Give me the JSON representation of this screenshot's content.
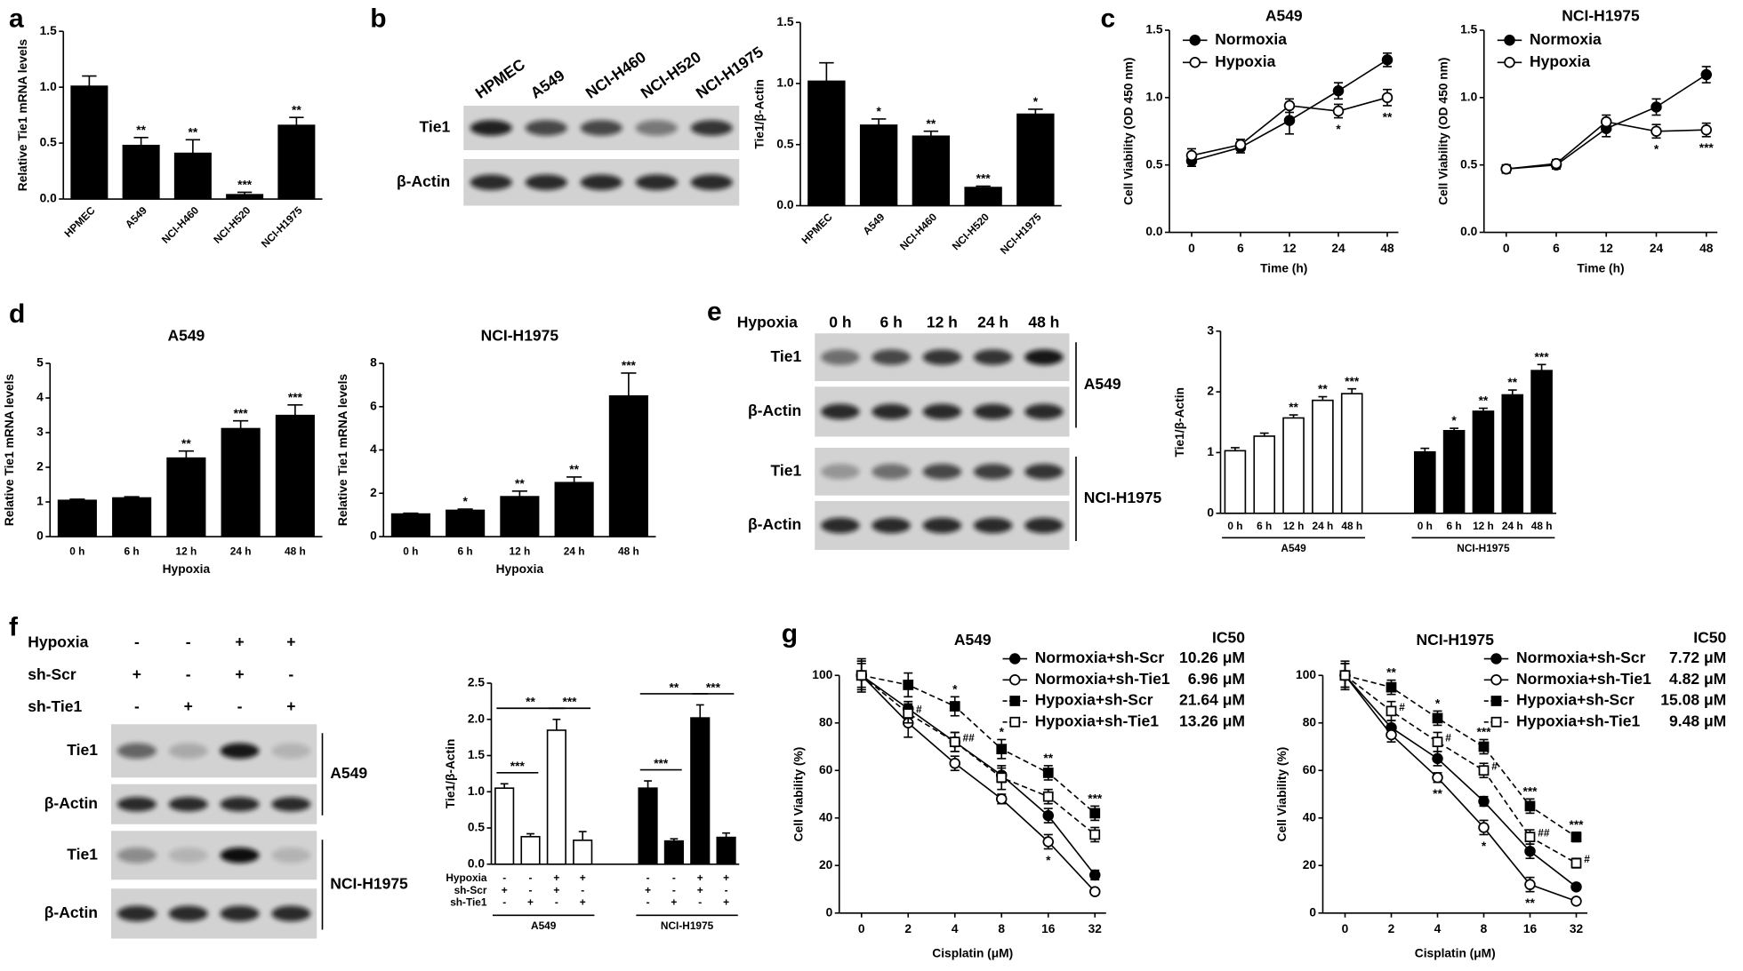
{
  "panel_labels": [
    "a",
    "b",
    "c",
    "d",
    "e",
    "f",
    "g"
  ],
  "blots": [
    {
      "lanes": [
        "HPMEC",
        "A549",
        "NCI-H460",
        "NCI-H520",
        "NCI-H1975"
      ],
      "sections": [
        {
          "rows": [
            "Tie1",
            "β-Actin"
          ]
        }
      ]
    },
    {
      "title": "Hypoxia",
      "lanes": [
        "0 h",
        "6 h",
        "12 h",
        "24 h",
        "48 h"
      ],
      "sections": [
        {
          "name": "A549",
          "rows": [
            "Tie1",
            "β-Actin"
          ]
        },
        {
          "name": "NCI-H1975",
          "rows": [
            "Tie1",
            "β-Actin"
          ]
        }
      ]
    },
    {
      "conditions": [
        {
          "name": "Hypoxia",
          "values": [
            "-",
            "-",
            "+",
            "+"
          ]
        },
        {
          "name": "sh-Scr",
          "values": [
            "+",
            "-",
            "+",
            "-"
          ]
        },
        {
          "name": "sh-Tie1",
          "values": [
            "-",
            "+",
            "-",
            "+"
          ]
        }
      ],
      "sections": [
        {
          "name": "A549",
          "rows": [
            "Tie1",
            "β-Actin"
          ]
        },
        {
          "name": "NCI-H1975",
          "rows": [
            "Tie1",
            "β-Actin"
          ]
        }
      ]
    }
  ],
  "chart_data": [
    {
      "type": "bar",
      "y_label": "Relative Tie1 mRNA levels",
      "categories": [
        "HPMEC",
        "A549",
        "NCI-H460",
        "NCI-H520",
        "NCI-H1975"
      ],
      "values": [
        1.01,
        0.48,
        0.41,
        0.04,
        0.66
      ],
      "errors": [
        0.09,
        0.07,
        0.12,
        0.02,
        0.07
      ],
      "annotations": [
        null,
        "**",
        "**",
        "***",
        "**"
      ],
      "color": "#000000",
      "ylim": [
        0,
        1.5
      ],
      "yticks": [
        {
          "value": 0,
          "label": "0.0"
        },
        0.5,
        {
          "value": 1,
          "label": "1.0"
        },
        1.5
      ]
    },
    {
      "type": "bar",
      "y_label": "Tie1/β-Actin",
      "categories": [
        "HPMEC",
        "A549",
        "NCI-H460",
        "NCI-H520",
        "NCI-H1975"
      ],
      "values": [
        1.02,
        0.66,
        0.57,
        0.15,
        0.75
      ],
      "errors": [
        0.15,
        0.05,
        0.04,
        0.01,
        0.04
      ],
      "annotations": [
        null,
        "*",
        "**",
        "***",
        "*"
      ],
      "color": "#000000",
      "ylim": [
        0,
        1.5
      ],
      "yticks": [
        {
          "value": 0,
          "label": "0.0"
        },
        0.5,
        {
          "value": 1,
          "label": "1.0"
        },
        1.5
      ]
    },
    {
      "type": "line",
      "title": "A549",
      "x_label": "Time (h)",
      "y_label": "Cell Viability (OD 450 nm)",
      "categories": [
        "0",
        "6",
        "12",
        "24",
        "48"
      ],
      "legend": "upper left",
      "ylim": [
        0,
        1.5
      ],
      "yticks": [
        {
          "value": 0,
          "label": "0.0"
        },
        0.5,
        {
          "value": 1,
          "label": "1.0"
        },
        1.5
      ],
      "series": [
        {
          "name": "Normoxia",
          "color": "#000000",
          "marker": "circle",
          "filled": true,
          "dashed": false,
          "values": [
            0.53,
            0.63,
            0.83,
            1.05,
            1.28
          ],
          "errors": [
            0.04,
            0.04,
            0.1,
            0.06,
            0.05
          ]
        },
        {
          "name": "Hypoxia",
          "color": "#000000",
          "marker": "circle",
          "filled": false,
          "dashed": false,
          "values": [
            0.57,
            0.65,
            0.94,
            0.9,
            1.0
          ],
          "errors": [
            0.05,
            0.04,
            0.05,
            0.05,
            0.06
          ],
          "annotations": [
            null,
            null,
            null,
            "*",
            "**"
          ]
        }
      ]
    },
    {
      "type": "line",
      "title": "NCI-H1975",
      "x_label": "Time (h)",
      "y_label": "Cell Viability (OD 450 nm)",
      "categories": [
        "0",
        "6",
        "12",
        "24",
        "48"
      ],
      "legend": "upper left",
      "ylim": [
        0,
        1.5
      ],
      "yticks": [
        {
          "value": 0,
          "label": "0.0"
        },
        0.5,
        {
          "value": 1,
          "label": "1.0"
        },
        1.5
      ],
      "series": [
        {
          "name": "Normoxia",
          "color": "#000000",
          "marker": "circle",
          "filled": true,
          "dashed": false,
          "values": [
            0.47,
            0.5,
            0.77,
            0.93,
            1.17
          ],
          "errors": [
            0.03,
            0.03,
            0.06,
            0.06,
            0.06
          ]
        },
        {
          "name": "Hypoxia",
          "color": "#000000",
          "marker": "circle",
          "filled": false,
          "dashed": false,
          "values": [
            0.47,
            0.51,
            0.82,
            0.75,
            0.76
          ],
          "errors": [
            0.03,
            0.03,
            0.05,
            0.05,
            0.05
          ],
          "annotations": [
            null,
            null,
            null,
            "*",
            "***"
          ]
        }
      ]
    },
    {
      "type": "bar",
      "title": "A549",
      "x_label": "Hypoxia",
      "y_label": "Relative Tie1 mRNA levels",
      "categories": [
        "0 h",
        "6 h",
        "12 h",
        "24 h",
        "48 h"
      ],
      "values": [
        1.05,
        1.12,
        2.27,
        3.12,
        3.5
      ],
      "errors": [
        0.03,
        0.03,
        0.2,
        0.22,
        0.3
      ],
      "annotations": [
        null,
        null,
        "**",
        "***",
        "***"
      ],
      "color": "#000000",
      "ylim": [
        0,
        5
      ],
      "yticks": [
        0,
        1,
        2,
        3,
        4,
        5
      ]
    },
    {
      "type": "bar",
      "title": "NCI-H1975",
      "x_label": "Hypoxia",
      "y_label": "Relative Tie1 mRNA levels",
      "categories": [
        "0 h",
        "6 h",
        "12 h",
        "24 h",
        "48 h"
      ],
      "values": [
        1.05,
        1.22,
        1.85,
        2.5,
        6.5
      ],
      "errors": [
        0.03,
        0.05,
        0.25,
        0.25,
        1.05
      ],
      "annotations": [
        null,
        "*",
        "**",
        "**",
        "***"
      ],
      "color": "#000000",
      "ylim": [
        0,
        8
      ],
      "yticks": [
        0,
        2,
        4,
        6,
        8
      ]
    },
    {
      "type": "grouped_bar",
      "y_label": "Tie1/β-Actin",
      "categories": [
        "0 h",
        "6 h",
        "12 h",
        "24 h",
        "48 h"
      ],
      "ylim": [
        0,
        3
      ],
      "yticks": [
        0,
        1,
        2,
        3
      ],
      "groups": [
        {
          "name": "A549",
          "color": "#ffffff",
          "values": [
            1.03,
            1.27,
            1.57,
            1.86,
            1.97
          ],
          "errors": [
            0.05,
            0.05,
            0.05,
            0.06,
            0.08
          ],
          "annotations": [
            null,
            null,
            "**",
            "**",
            "***"
          ]
        },
        {
          "name": "NCI-H1975",
          "color": "#000000",
          "values": [
            1.01,
            1.36,
            1.68,
            1.95,
            2.35
          ],
          "errors": [
            0.06,
            0.04,
            0.05,
            0.08,
            0.1
          ],
          "annotations": [
            null,
            "*",
            "**",
            "**",
            "***"
          ]
        }
      ]
    },
    {
      "type": "grouped_bar",
      "y_label": "Tie1/β-Actin",
      "ylim": [
        0,
        2.5
      ],
      "yticks": [
        {
          "value": 0,
          "label": "0.0"
        },
        0.5,
        {
          "value": 1,
          "label": "1.0"
        },
        1.5,
        {
          "value": 2,
          "label": "2.0"
        },
        2.5
      ],
      "conditions": [
        {
          "name": "Hypoxia",
          "values": [
            "-",
            "-",
            "+",
            "+"
          ]
        },
        {
          "name": "sh-Scr",
          "values": [
            "+",
            "-",
            "+",
            "-"
          ]
        },
        {
          "name": "sh-Tie1",
          "values": [
            "-",
            "+",
            "-",
            "+"
          ]
        }
      ],
      "groups": [
        {
          "name": "A549",
          "color": "#ffffff",
          "values": [
            1.05,
            0.38,
            1.85,
            0.33
          ],
          "errors": [
            0.06,
            0.04,
            0.15,
            0.12
          ],
          "comparisons": [
            "***",
            "**",
            "***"
          ]
        },
        {
          "name": "NCI-H1975",
          "color": "#000000",
          "values": [
            1.05,
            0.32,
            2.02,
            0.37
          ],
          "errors": [
            0.1,
            0.03,
            0.18,
            0.06
          ],
          "comparisons": [
            "***",
            "**",
            "***"
          ]
        }
      ]
    },
    {
      "type": "line",
      "title": "A549",
      "x_label": "Cisplatin (μM)",
      "y_label": "Cell Viability (%)",
      "categories": [
        "0",
        "2",
        "4",
        "8",
        "16",
        "32"
      ],
      "legend": "upper right",
      "legend_header": "IC50",
      "ylim": [
        0,
        100
      ],
      "yticks": [
        0,
        20,
        40,
        60,
        80,
        100
      ],
      "series": [
        {
          "name": "Normoxia+sh-Scr",
          "ic50": "10.26 μM",
          "color": "#000000",
          "marker": "circle",
          "filled": true,
          "dashed": false,
          "values": [
            100,
            86,
            72,
            58,
            41,
            16
          ],
          "errors": [
            6,
            3,
            4,
            3,
            3,
            2
          ]
        },
        {
          "name": "Normoxia+sh-Tie1",
          "ic50": "6.96 μM",
          "color": "#000000",
          "marker": "circle",
          "filled": false,
          "dashed": false,
          "values": [
            100,
            80,
            63,
            48,
            30,
            9
          ],
          "errors": [
            6,
            6,
            3,
            2,
            3,
            1
          ],
          "annotations": [
            null,
            null,
            null,
            null,
            "*",
            null
          ]
        },
        {
          "name": "Hypoxia+sh-Scr",
          "ic50": "21.64 μM",
          "color": "#000000",
          "marker": "square",
          "filled": true,
          "dashed": true,
          "values": [
            100,
            96,
            87,
            69,
            59,
            42
          ],
          "errors": [
            7,
            5,
            4,
            4,
            3,
            3
          ],
          "annotations": [
            null,
            null,
            "*",
            "*",
            "**",
            "***"
          ]
        },
        {
          "name": "Hypoxia+sh-Tie1",
          "ic50": "13.26 μM",
          "color": "#000000",
          "marker": "square",
          "filled": false,
          "dashed": true,
          "values": [
            100,
            84,
            72,
            57,
            49,
            33
          ],
          "errors": [
            5,
            4,
            4,
            5,
            3,
            3
          ],
          "annotations": [
            null,
            "#",
            "##",
            null,
            null,
            null
          ]
        }
      ]
    },
    {
      "type": "line",
      "title": "NCI-H1975",
      "x_label": "Cisplatin (μM)",
      "y_label": "Cell Viability (%)",
      "categories": [
        "0",
        "2",
        "4",
        "8",
        "16",
        "32"
      ],
      "legend": "upper right",
      "legend_header": "IC50",
      "ylim": [
        0,
        100
      ],
      "yticks": [
        0,
        20,
        40,
        60,
        80,
        100
      ],
      "series": [
        {
          "name": "Normoxia+sh-Scr",
          "ic50": "7.72 μM",
          "color": "#000000",
          "marker": "circle",
          "filled": true,
          "dashed": false,
          "values": [
            100,
            78,
            65,
            47,
            26,
            11
          ],
          "errors": [
            5,
            3,
            3,
            2,
            3,
            1
          ]
        },
        {
          "name": "Normoxia+sh-Tie1",
          "ic50": "4.82 μM",
          "color": "#000000",
          "marker": "circle",
          "filled": false,
          "dashed": false,
          "values": [
            100,
            75,
            57,
            36,
            12,
            5
          ],
          "errors": [
            5,
            3,
            2,
            3,
            3,
            1
          ],
          "annotations": [
            null,
            null,
            "**",
            "*",
            "**",
            null
          ]
        },
        {
          "name": "Hypoxia+sh-Scr",
          "ic50": "15.08 μM",
          "color": "#000000",
          "marker": "square",
          "filled": true,
          "dashed": true,
          "values": [
            100,
            95,
            82,
            70,
            45,
            32
          ],
          "errors": [
            6,
            3,
            3,
            3,
            3,
            2
          ],
          "annotations": [
            null,
            "**",
            "*",
            "***",
            "***",
            "***"
          ]
        },
        {
          "name": "Hypoxia+sh-Tie1",
          "ic50": "9.48 μM",
          "color": "#000000",
          "marker": "square",
          "filled": false,
          "dashed": true,
          "values": [
            100,
            85,
            72,
            60,
            32,
            21
          ],
          "errors": [
            5,
            4,
            4,
            3,
            3,
            2
          ],
          "annotations": [
            null,
            "#",
            "#",
            "#",
            "##",
            "#"
          ]
        }
      ]
    }
  ]
}
